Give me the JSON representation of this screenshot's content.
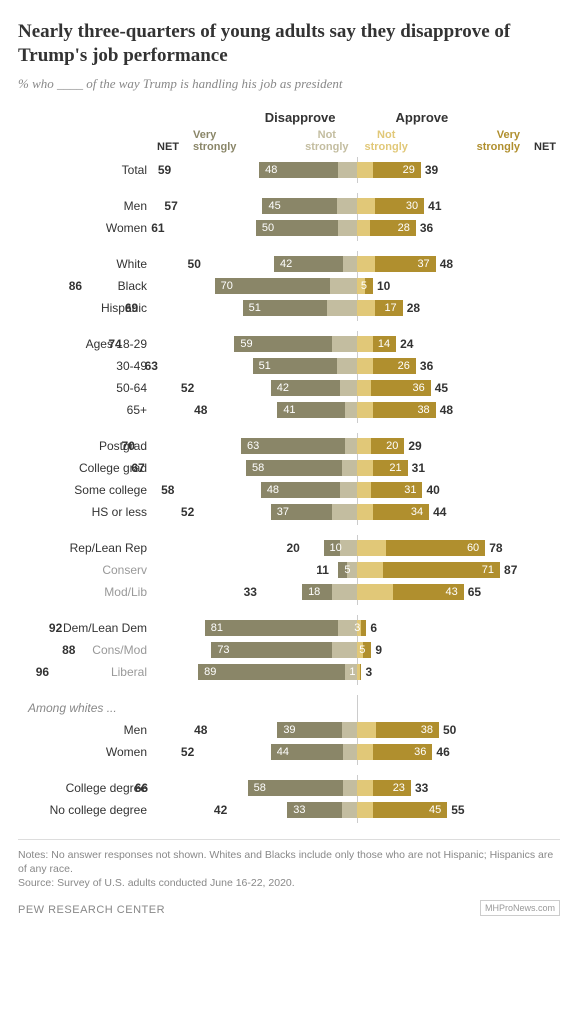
{
  "title": "Nearly three-quarters of young adults say they disapprove of Trump's job performance",
  "subtitle": "% who ____ of the way Trump is handling his job as president",
  "header": {
    "disapprove": "Disapprove",
    "approve": "Approve",
    "very_strongly_l": "Very strongly",
    "not_strongly_l": "Not strongly",
    "not_strongly_r": "Not strongly",
    "very_strongly_r": "Very strongly",
    "net": "NET"
  },
  "colors": {
    "d_very": "#8a8668",
    "d_not": "#c3bda0",
    "a_not": "#e1c878",
    "a_very": "#b08f2e",
    "hdr_d_very": "#8a8668",
    "hdr_d_not": "#c3bda0",
    "hdr_a_not": "#e1c878",
    "hdr_a_very": "#b08f2e"
  },
  "scale": 1.65,
  "groups": [
    [
      {
        "label": "Total",
        "d_net": 59,
        "d_very": 48,
        "d_not": 11,
        "a_not": 10,
        "a_very": 29,
        "a_net": 39
      }
    ],
    [
      {
        "label": "Men",
        "d_net": 57,
        "d_very": 45,
        "d_not": 12,
        "a_not": 11,
        "a_very": 30,
        "a_net": 41
      },
      {
        "label": "Women",
        "d_net": 61,
        "d_very": 50,
        "d_not": 11,
        "a_not": 8,
        "a_very": 28,
        "a_net": 36
      }
    ],
    [
      {
        "label": "White",
        "d_net": 50,
        "d_very": 42,
        "d_not": 8,
        "a_not": 11,
        "a_very": 37,
        "a_net": 48
      },
      {
        "label": "Black",
        "d_net": 86,
        "d_very": 70,
        "d_not": 16,
        "a_not": 5,
        "a_very": 5,
        "a_net": 10
      },
      {
        "label": "Hispanic",
        "d_net": 69,
        "d_very": 51,
        "d_not": 18,
        "a_not": 11,
        "a_very": 17,
        "a_net": 28
      }
    ],
    [
      {
        "label": "Ages 18-29",
        "d_net": 74,
        "d_very": 59,
        "d_not": 15,
        "a_not": 10,
        "a_very": 14,
        "a_net": 24
      },
      {
        "label": "30-49",
        "d_net": 63,
        "d_very": 51,
        "d_not": 12,
        "a_not": 10,
        "a_very": 26,
        "a_net": 36
      },
      {
        "label": "50-64",
        "d_net": 52,
        "d_very": 42,
        "d_not": 10,
        "a_not": 9,
        "a_very": 36,
        "a_net": 45
      },
      {
        "label": "65+",
        "d_net": 48,
        "d_very": 41,
        "d_not": 7,
        "a_not": 10,
        "a_very": 38,
        "a_net": 48
      }
    ],
    [
      {
        "label": "Postgrad",
        "d_net": 70,
        "d_very": 63,
        "d_not": 7,
        "a_not": 9,
        "a_very": 20,
        "a_net": 29
      },
      {
        "label": "College grad",
        "d_net": 67,
        "d_very": 58,
        "d_not": 9,
        "a_not": 10,
        "a_very": 21,
        "a_net": 31
      },
      {
        "label": "Some college",
        "d_net": 58,
        "d_very": 48,
        "d_not": 10,
        "a_not": 9,
        "a_very": 31,
        "a_net": 40
      },
      {
        "label": "HS or less",
        "d_net": 52,
        "d_very": 37,
        "d_not": 15,
        "a_not": 10,
        "a_very": 34,
        "a_net": 44
      }
    ],
    [
      {
        "label": "Rep/Lean Rep",
        "d_net": 20,
        "d_very": 10,
        "d_not": 10,
        "a_not": 18,
        "a_very": 60,
        "a_net": 78
      },
      {
        "label": "Conserv",
        "sub": true,
        "d_net": 11,
        "d_very": 5,
        "d_not": 6,
        "a_not": 16,
        "a_very": 71,
        "a_net": 87
      },
      {
        "label": "Mod/Lib",
        "sub": true,
        "d_net": 33,
        "d_very": 18,
        "d_not": 15,
        "a_not": 22,
        "a_very": 43,
        "a_net": 65
      }
    ],
    [
      {
        "label": "Dem/Lean Dem",
        "d_net": 92,
        "d_very": 81,
        "d_not": 11,
        "a_not": 3,
        "a_very": 3,
        "a_net": 6
      },
      {
        "label": "Cons/Mod",
        "sub": true,
        "d_net": 88,
        "d_very": 73,
        "d_not": 15,
        "a_not": 4,
        "a_very": 5,
        "a_net": 9
      },
      {
        "label": "Liberal",
        "sub": true,
        "d_net": 96,
        "d_very": 89,
        "d_not": 7,
        "a_not": 2,
        "a_very": 1,
        "a_net": 3
      }
    ],
    [
      {
        "label": "Among whites ...",
        "italic": true
      },
      {
        "label": "Men",
        "d_net": 48,
        "d_very": 39,
        "d_not": 9,
        "a_not": 12,
        "a_very": 38,
        "a_net": 50
      },
      {
        "label": "Women",
        "d_net": 52,
        "d_very": 44,
        "d_not": 8,
        "a_not": 10,
        "a_very": 36,
        "a_net": 46
      }
    ],
    [
      {
        "label": "College degree",
        "d_net": 66,
        "d_very": 58,
        "d_not": 8,
        "a_not": 10,
        "a_very": 23,
        "a_net": 33
      },
      {
        "label": "No college degree",
        "d_net": 42,
        "d_very": 33,
        "d_not": 9,
        "a_not": 10,
        "a_very": 45,
        "a_net": 55
      }
    ]
  ],
  "notes": "Notes: No answer responses not shown. Whites and Blacks include only those who are not Hispanic; Hispanics are of any race.",
  "source": "Source: Survey of U.S. adults conducted June 16-22, 2020.",
  "footer": "PEW RESEARCH CENTER",
  "logo": "MHProNews.com"
}
